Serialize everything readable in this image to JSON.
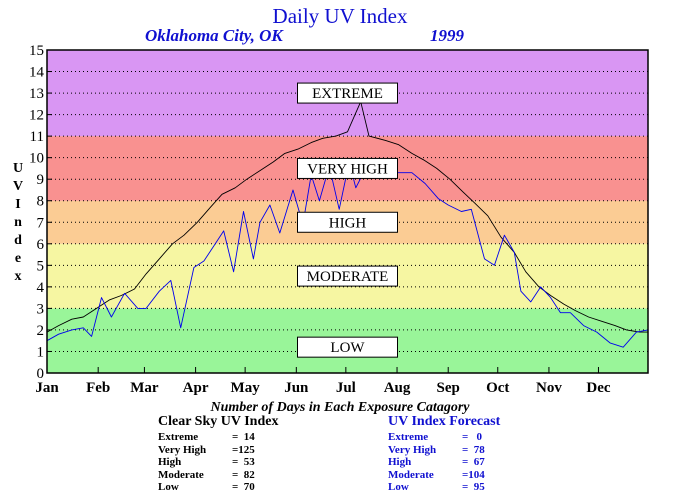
{
  "chart_data": {
    "type": "line",
    "title": "Daily UV Index",
    "subtitle_location": "Oklahoma City, OK",
    "subtitle_year": "1999",
    "ylabel": "UV Index",
    "ylim": [
      0,
      15
    ],
    "yticks": [
      "0",
      "1",
      "2",
      "3",
      "4",
      "5",
      "6",
      "7",
      "8",
      "9",
      "10",
      "11",
      "12",
      "13",
      "14",
      "15"
    ],
    "xlim": [
      1,
      365
    ],
    "months": [
      "Jan",
      "Feb",
      "Mar",
      "Apr",
      "May",
      "Jun",
      "Jul",
      "Aug",
      "Sep",
      "Oct",
      "Nov",
      "Dec"
    ],
    "month_start_days": [
      1,
      32,
      60,
      91,
      121,
      152,
      182,
      213,
      244,
      274,
      305,
      335
    ],
    "grid": "dotted horizontal",
    "bands": [
      {
        "name": "LOW",
        "from": 0,
        "to": 3,
        "color": "#99f599"
      },
      {
        "name": "MODERATE",
        "from": 3,
        "to": 6,
        "color": "#f6f6a2"
      },
      {
        "name": "HIGH",
        "from": 6,
        "to": 8,
        "color": "#fbcc94"
      },
      {
        "name": "VERY HIGH",
        "from": 8,
        "to": 11,
        "color": "#f99190"
      },
      {
        "name": "EXTREME",
        "from": 11,
        "to": 15,
        "color": "#d996f3"
      }
    ],
    "series": [
      {
        "name": "Clear Sky UV Index",
        "color": "#000000",
        "x": [
          1,
          8,
          16,
          23,
          31,
          39,
          46,
          54,
          61,
          69,
          77,
          84,
          92,
          100,
          107,
          115,
          122,
          130,
          138,
          145,
          153,
          161,
          168,
          176,
          183,
          191,
          196,
          206,
          214,
          222,
          229,
          237,
          245,
          253,
          260,
          268,
          276,
          284,
          291,
          299,
          306,
          314,
          321,
          329,
          337,
          345,
          352,
          360,
          365
        ],
        "y": [
          1.9,
          2.2,
          2.5,
          2.6,
          3.0,
          3.4,
          3.6,
          3.9,
          4.6,
          5.3,
          6.0,
          6.4,
          7.0,
          7.7,
          8.3,
          8.6,
          9.0,
          9.4,
          9.8,
          10.2,
          10.4,
          10.7,
          10.9,
          11.0,
          11.2,
          12.6,
          11.0,
          10.8,
          10.6,
          10.2,
          9.9,
          9.5,
          9.0,
          8.4,
          7.9,
          7.3,
          6.3,
          5.6,
          4.7,
          4.0,
          3.6,
          3.2,
          2.9,
          2.6,
          2.4,
          2.2,
          2.0,
          1.9,
          1.9
        ]
      },
      {
        "name": "UV Index Forecast",
        "color": "#0000ee",
        "x": [
          1,
          8,
          16,
          23,
          28,
          34,
          40,
          48,
          56,
          61,
          69,
          76,
          82,
          90,
          96,
          102,
          108,
          114,
          120,
          126,
          130,
          136,
          142,
          150,
          156,
          161,
          166,
          172,
          178,
          184,
          188,
          196,
          202,
          208,
          214,
          222,
          230,
          238,
          244,
          252,
          258,
          266,
          272,
          278,
          284,
          288,
          294,
          300,
          306,
          312,
          318,
          326,
          334,
          342,
          350,
          358,
          365
        ],
        "y": [
          1.5,
          1.8,
          2.0,
          2.1,
          1.7,
          3.5,
          2.6,
          3.7,
          3.0,
          3.0,
          3.8,
          4.3,
          2.1,
          4.9,
          5.2,
          5.9,
          6.6,
          4.7,
          7.5,
          5.3,
          7.0,
          7.8,
          6.5,
          8.5,
          6.9,
          9.2,
          8.0,
          9.6,
          7.6,
          9.8,
          8.6,
          9.8,
          9.5,
          9.3,
          9.3,
          9.3,
          8.8,
          8.1,
          7.8,
          7.5,
          7.6,
          5.3,
          5.0,
          6.4,
          5.6,
          3.8,
          3.3,
          4.0,
          3.5,
          2.8,
          2.8,
          2.2,
          1.9,
          1.4,
          1.2,
          1.9,
          2.0
        ]
      }
    ]
  },
  "caption": "Number of Days in Each Exposure Catagory",
  "clear_sky": {
    "title": "Clear Sky UV Index",
    "rows": [
      {
        "label": "Extreme",
        "value": "=  14"
      },
      {
        "label": "Very High",
        "value": "=125"
      },
      {
        "label": "High",
        "value": "=  53"
      },
      {
        "label": "Moderate",
        "value": "=  82"
      },
      {
        "label": "Low",
        "value": "=  70"
      }
    ]
  },
  "forecast": {
    "title": "UV Index Forecast",
    "rows": [
      {
        "label": "Extreme",
        "value": "=   0"
      },
      {
        "label": "Very High",
        "value": "=  78"
      },
      {
        "label": "High",
        "value": "=  67"
      },
      {
        "label": "Moderate",
        "value": "=104"
      },
      {
        "label": "Low",
        "value": "=  95"
      }
    ]
  }
}
